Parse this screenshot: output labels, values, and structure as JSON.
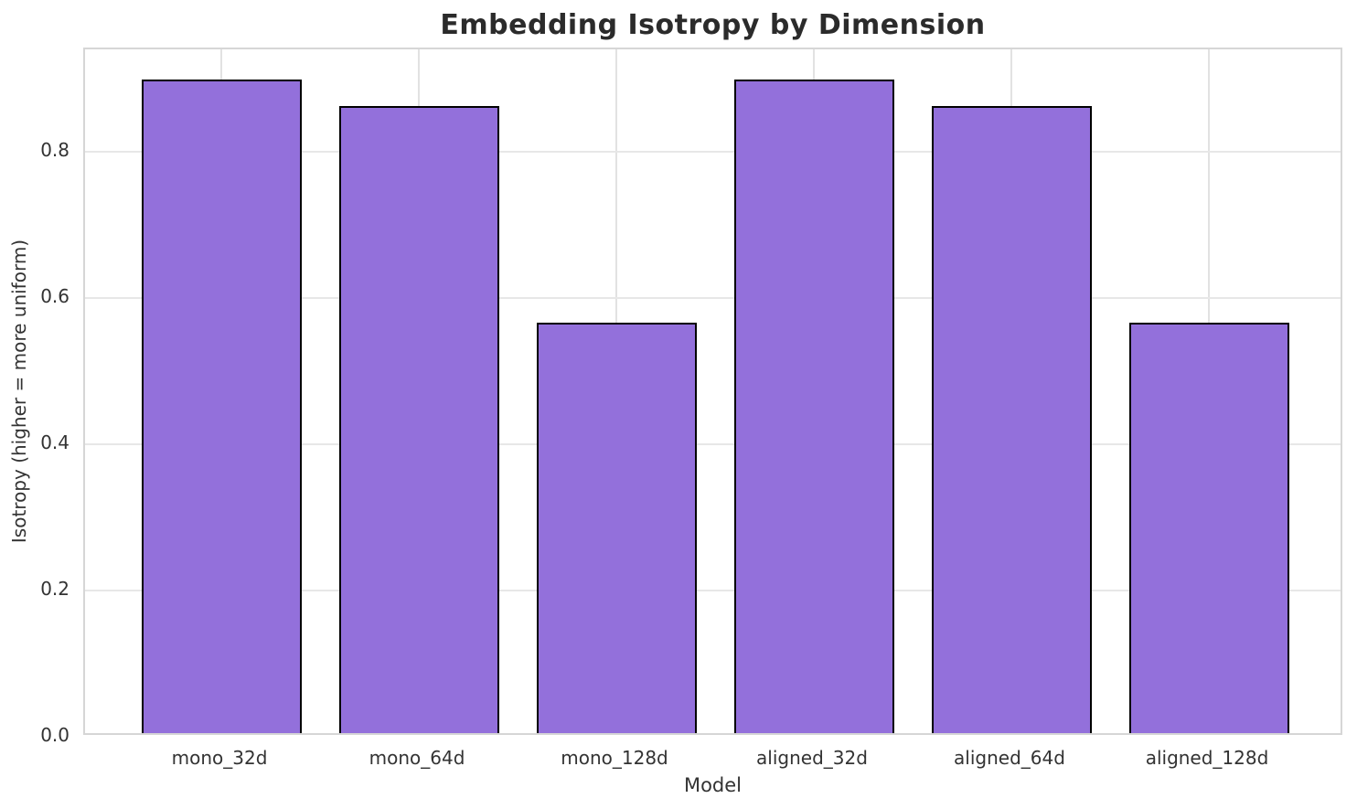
{
  "chart_data": {
    "type": "bar",
    "title": "Embedding Isotropy by Dimension",
    "xlabel": "Model",
    "ylabel": "Isotropy (higher = more uniform)",
    "categories": [
      "mono_32d",
      "mono_64d",
      "mono_128d",
      "aligned_32d",
      "aligned_64d",
      "aligned_128d"
    ],
    "values": [
      0.894,
      0.858,
      0.561,
      0.894,
      0.858,
      0.561
    ],
    "ylim": [
      0,
      0.94
    ],
    "ytick_labels": [
      "0.0",
      "0.2",
      "0.4",
      "0.6",
      "0.8"
    ],
    "grid": "on",
    "legend": "none",
    "colors": {
      "bar_fill": "#9370db",
      "bar_edge": "#000000",
      "grid_line": "#e2e2e2",
      "spine": "#d6d6d6",
      "text": "#333333",
      "title_text": "#2b2b2b",
      "background": "#ffffff"
    }
  }
}
